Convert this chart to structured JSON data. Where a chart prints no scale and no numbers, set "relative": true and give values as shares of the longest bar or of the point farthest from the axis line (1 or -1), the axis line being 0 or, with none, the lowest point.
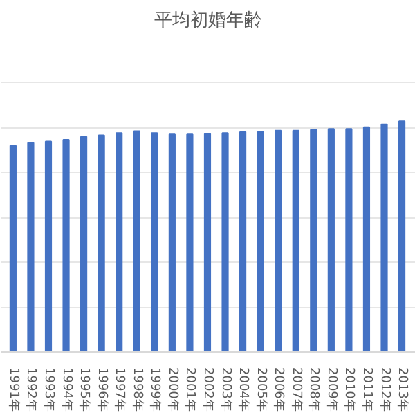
{
  "chart_data": {
    "type": "bar",
    "title": "平均初婚年齢",
    "relative": true,
    "grid": "y",
    "color": "#4472c4",
    "categories": [
      "1991年",
      "1992年",
      "1993年",
      "1994年",
      "1995年",
      "1996年",
      "1997年",
      "1998年",
      "1999年",
      "2000年",
      "2001年",
      "2002年",
      "2003年",
      "2004年",
      "2005年",
      "2006年",
      "2007年",
      "2008年",
      "2009年",
      "2010年",
      "2011年",
      "2012年",
      "2013年"
    ],
    "values": [
      0.894,
      0.906,
      0.912,
      0.92,
      0.933,
      0.939,
      0.949,
      0.957,
      0.949,
      0.943,
      0.943,
      0.945,
      0.949,
      0.953,
      0.953,
      0.959,
      0.959,
      0.963,
      0.967,
      0.967,
      0.974,
      0.986,
      1
    ]
  }
}
